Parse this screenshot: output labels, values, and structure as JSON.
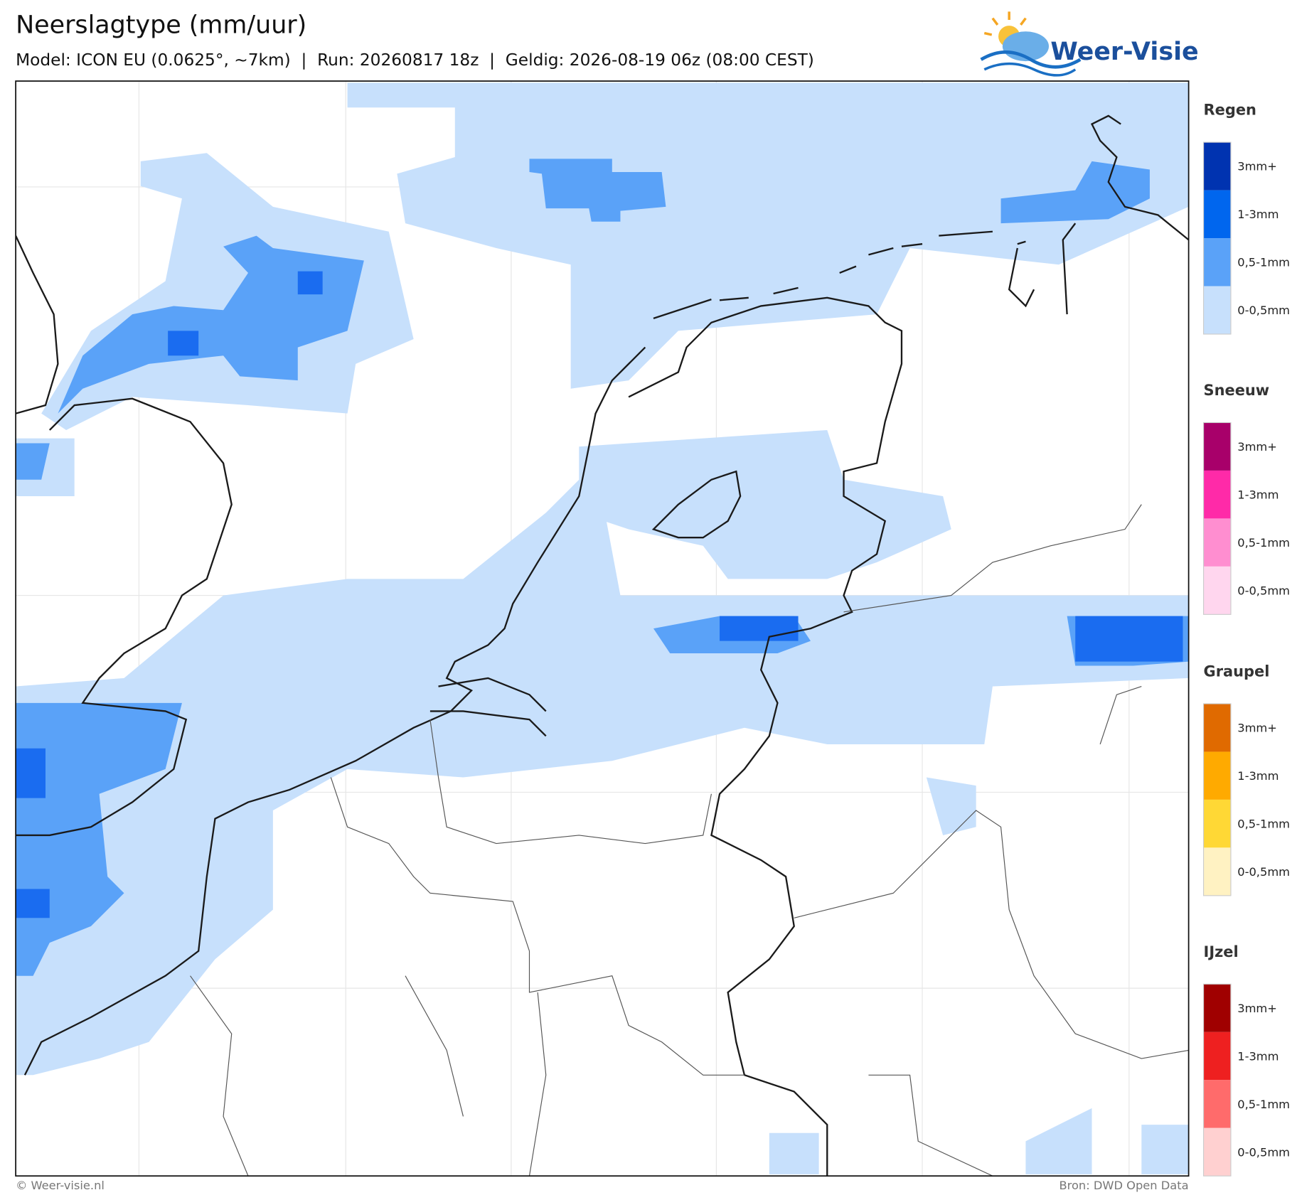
{
  "header": {
    "title": "Neerslagtype (mm/uur)",
    "subtitle": "Model: ICON EU (0.0625°, ~7km)  |  Run: 20260817 18z  |  Geldig: 2026-08-19 06z (08:00 CEST)"
  },
  "logo": {
    "text": "Weer-Visie"
  },
  "legend": [
    {
      "title": "Regen",
      "labels": [
        "3mm+",
        "1-3mm",
        "0,5-1mm",
        "0-0,5mm"
      ]
    },
    {
      "title": "Sneeuw",
      "labels": [
        "3mm+",
        "1-3mm",
        "0,5-1mm",
        "0-0,5mm"
      ]
    },
    {
      "title": "Graupel",
      "labels": [
        "3mm+",
        "1-3mm",
        "0,5-1mm",
        "0-0,5mm"
      ]
    },
    {
      "title": "IJzel",
      "labels": [
        "3mm+",
        "1-3mm",
        "0,5-1mm",
        "0-0,5mm"
      ]
    }
  ],
  "footer": {
    "left": "© Weer-visie.nl",
    "right": "Bron: DWD Open Data"
  }
}
